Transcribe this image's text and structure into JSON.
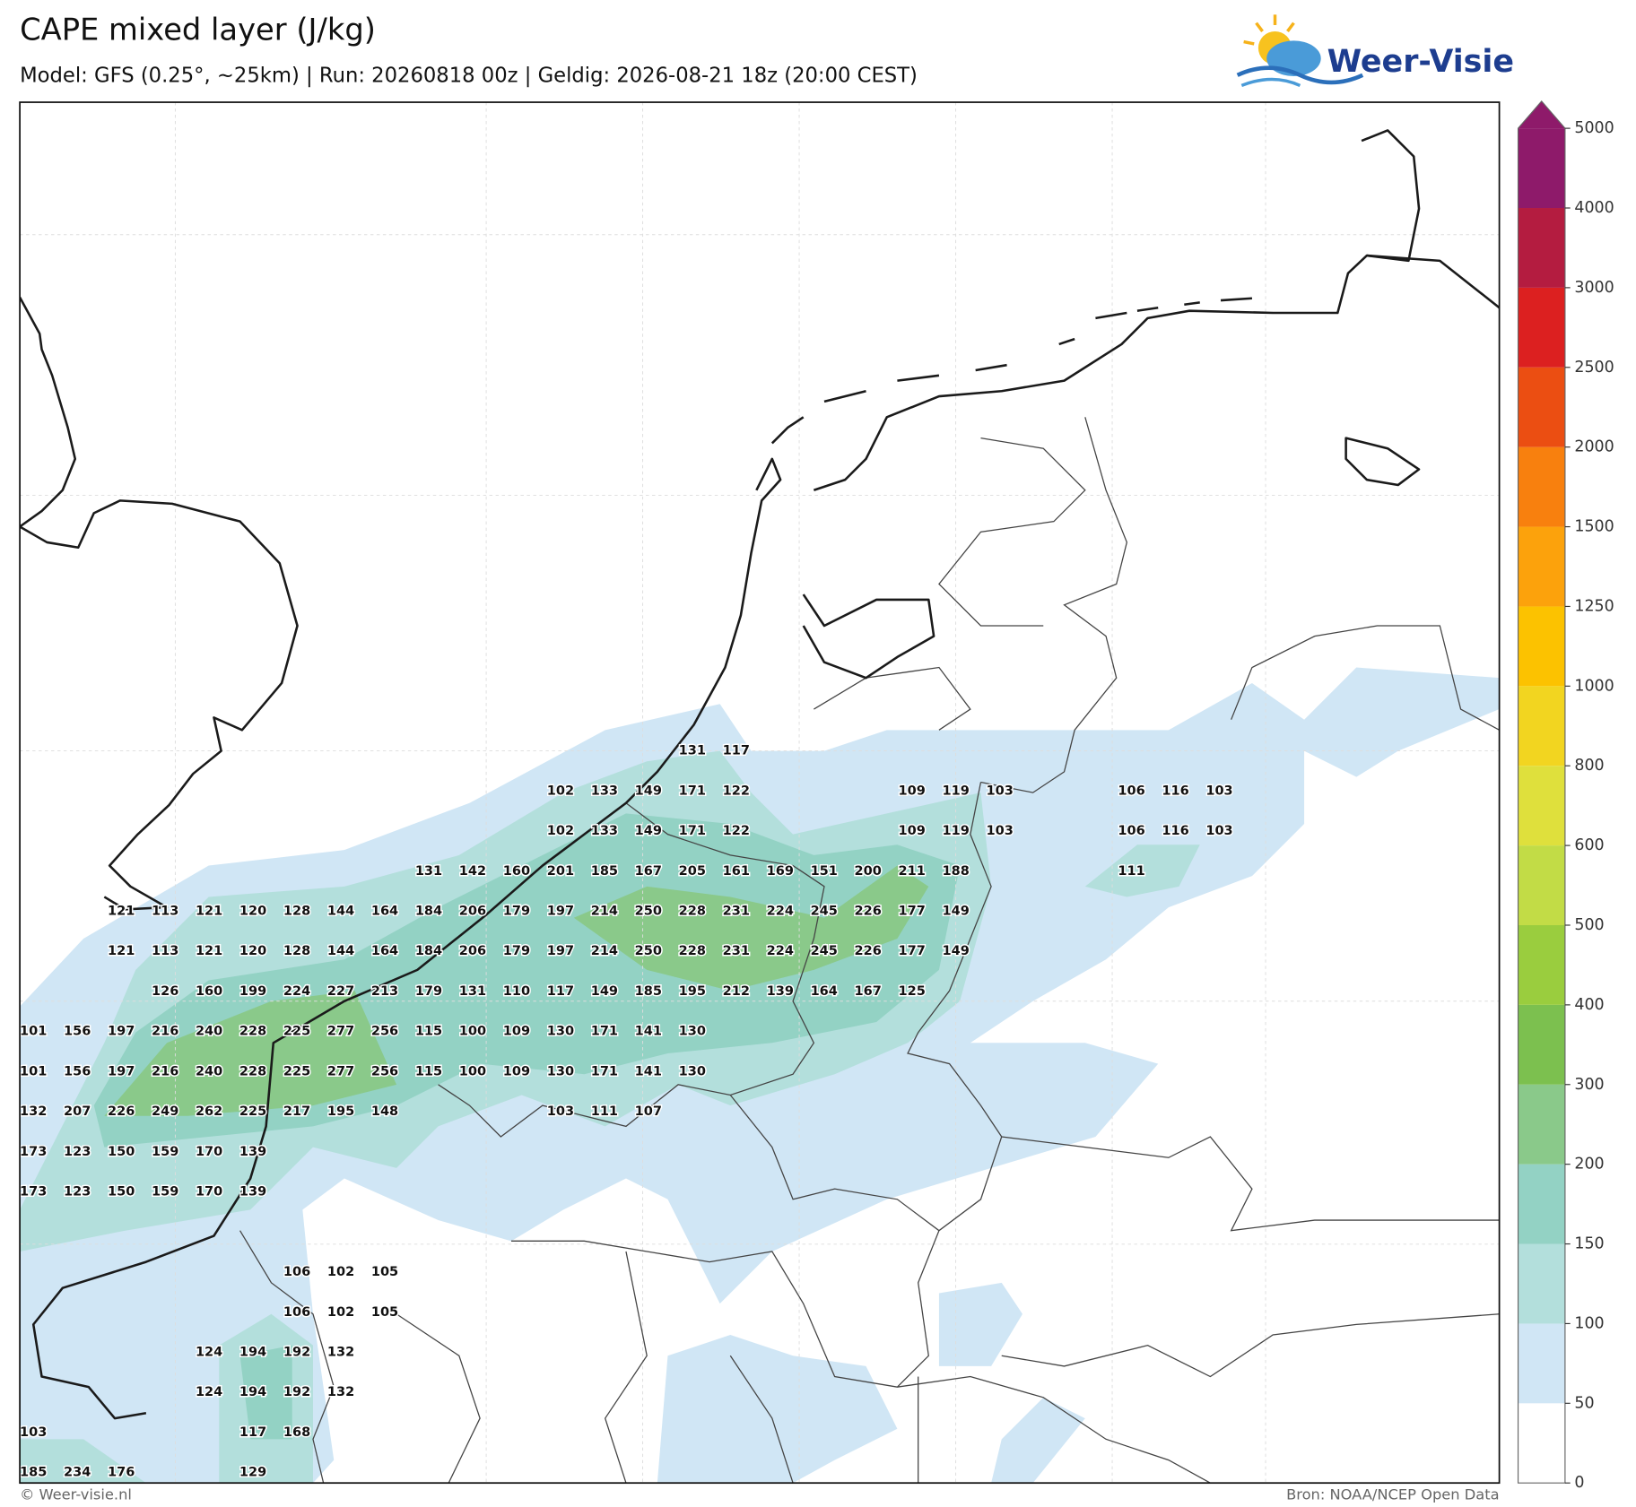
{
  "header": {
    "title": "CAPE mixed layer (J/kg)",
    "subtitle": "Model: GFS (0.25°, ~25km)  |  Run: 20260818 00z  |  Geldig: 2026-08-21 18z (20:00 CEST)"
  },
  "logo": {
    "text": "Weer-Visie"
  },
  "map": {
    "labels": [
      [
        131,
        117
      ],
      [
        102,
        133,
        149,
        171,
        122
      ],
      [
        109,
        119,
        103
      ],
      [
        106,
        116,
        103
      ],
      [
        102,
        133,
        149,
        171,
        122
      ],
      [
        109,
        119,
        103
      ],
      [
        106,
        116,
        103
      ],
      [
        131,
        142,
        160,
        201,
        185,
        167,
        205,
        161,
        169,
        151,
        200,
        211,
        188
      ],
      [
        111
      ],
      [
        121,
        113,
        121,
        120,
        128,
        144,
        164,
        184,
        206,
        179,
        197,
        214,
        250,
        228,
        231,
        224,
        245,
        226,
        177,
        149
      ],
      [
        121,
        113,
        121,
        120,
        128,
        144,
        164,
        184,
        206,
        179,
        197,
        214,
        250,
        228,
        231,
        224,
        245,
        226,
        177,
        149
      ],
      [
        126,
        160,
        199,
        224,
        227,
        213,
        179,
        131,
        110,
        117,
        149,
        185,
        195,
        212,
        139,
        164,
        167,
        125
      ],
      [
        101,
        156,
        197,
        216,
        240,
        228,
        225,
        277,
        256,
        115,
        100,
        109,
        130,
        171,
        141,
        130
      ],
      [
        101,
        156,
        197,
        216,
        240,
        228,
        225,
        277,
        256,
        115,
        100,
        109,
        130,
        171,
        141,
        130
      ],
      [
        132,
        207,
        226,
        249,
        262,
        225,
        217,
        195,
        148
      ],
      [
        103,
        111,
        107
      ],
      [
        173,
        123,
        150,
        159,
        170,
        139
      ],
      [
        173,
        123,
        150,
        159,
        170,
        139
      ],
      [
        106,
        102,
        105
      ],
      [
        106,
        102,
        105
      ],
      [
        124,
        194,
        192,
        132
      ],
      [
        124,
        194,
        192,
        132
      ],
      [
        103
      ],
      [
        117,
        168
      ],
      [
        185,
        234,
        176
      ],
      [
        129
      ]
    ]
  },
  "colorbar": {
    "ticks": [
      0,
      50,
      100,
      150,
      200,
      300,
      400,
      500,
      600,
      800,
      1000,
      1250,
      1500,
      2000,
      2500,
      3000,
      4000,
      5000
    ],
    "colors": [
      "#ffffff",
      "#d0e6f5",
      "#b3dfdc",
      "#93d2c4",
      "#8ac98a",
      "#7cc04f",
      "#9acd3e",
      "#c2dc46",
      "#dfe03c",
      "#f2d520",
      "#fcc200",
      "#fca20c",
      "#f8800e",
      "#eb4e12",
      "#dc2020",
      "#b41c40",
      "#8e1a6a"
    ],
    "extend_color": "#8e1a6a"
  },
  "footer": {
    "left": "© Weer-visie.nl",
    "right": "Bron: NOAA/NCEP Open Data"
  }
}
